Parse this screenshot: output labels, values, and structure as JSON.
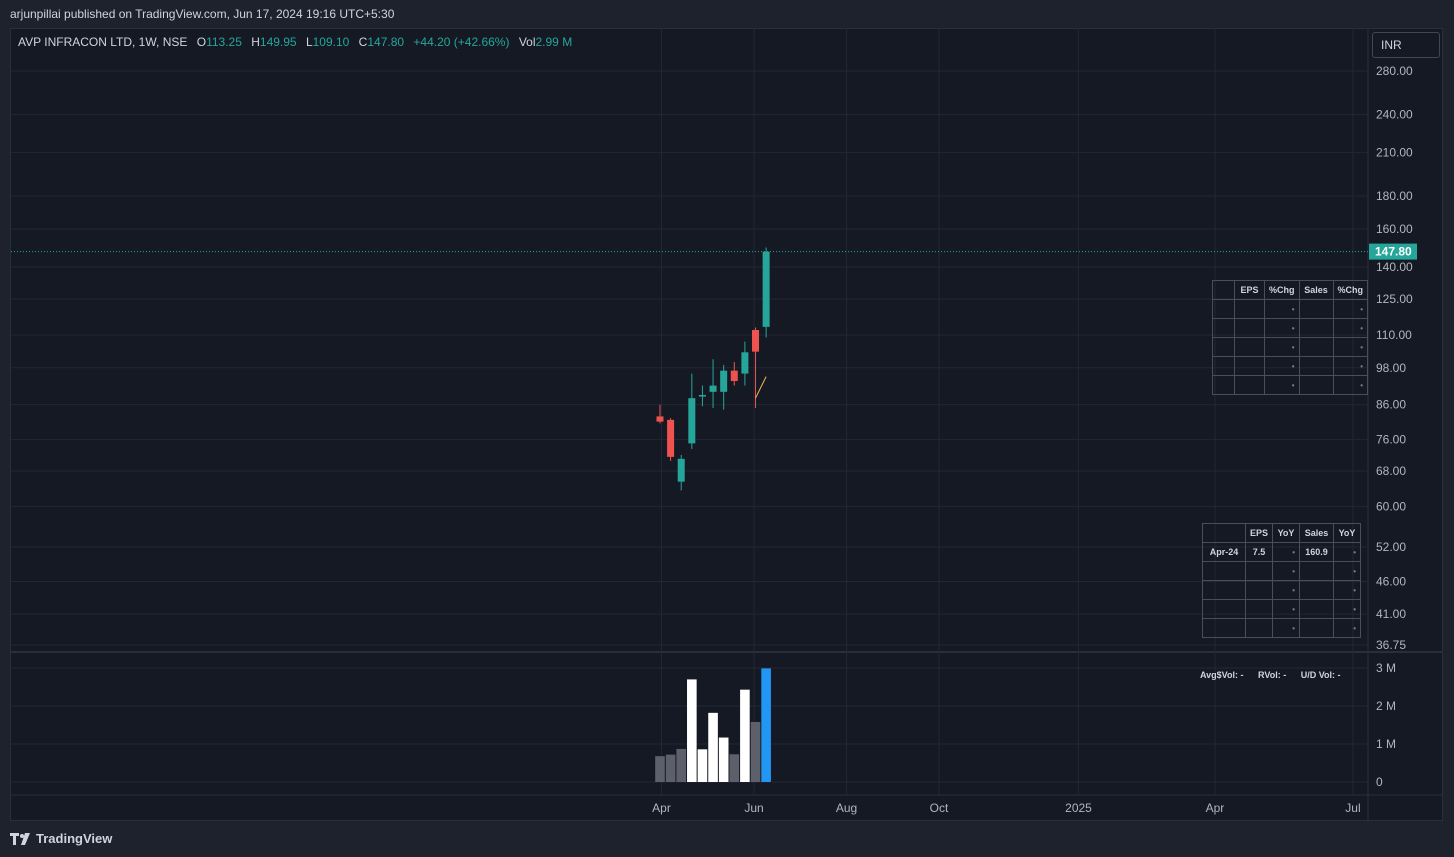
{
  "header": {
    "publish_line": "arjunpillai published on TradingView.com, Jun 17, 2024 19:16 UTC+5:30"
  },
  "legend": {
    "symbol": "AVP INFRACON LTD, 1W, NSE",
    "o_label": "O",
    "o_value": "113.25",
    "h_label": "H",
    "h_value": "149.95",
    "l_label": "L",
    "l_value": "109.10",
    "c_label": "C",
    "c_value": "147.80",
    "change": "+44.20 (+42.66%)",
    "vol_label": "Vol",
    "vol_value": "2.99 M"
  },
  "currency_button": "INR",
  "last_price_label": "147.80",
  "eps_table_top": {
    "headers": [
      "",
      "EPS",
      "%Chg",
      "Sales",
      "%Chg"
    ],
    "rows": [
      [
        "",
        "",
        "•",
        "",
        "•"
      ],
      [
        "",
        "",
        "•",
        "",
        "•"
      ],
      [
        "",
        "",
        "•",
        "",
        "•"
      ],
      [
        "",
        "",
        "•",
        "",
        "•"
      ],
      [
        "",
        "",
        "•",
        "",
        "•"
      ]
    ]
  },
  "eps_table_bottom": {
    "headers": [
      "",
      "EPS",
      "YoY",
      "Sales",
      "YoY"
    ],
    "rows": [
      [
        "Apr-24",
        "7.5",
        "•",
        "160.9",
        "•"
      ],
      [
        "",
        "",
        "•",
        "",
        "•"
      ],
      [
        "",
        "",
        "•",
        "",
        "•"
      ],
      [
        "",
        "",
        "•",
        "",
        "•"
      ],
      [
        "",
        "",
        "•",
        "",
        "•"
      ]
    ]
  },
  "stats": {
    "avg_vol": "Avg$Vol: -",
    "rvol": "RVol: -",
    "ud_vol": "U/D Vol: -"
  },
  "footer": {
    "brand": "TradingView"
  },
  "colors": {
    "up": "#26a69a",
    "down": "#ef5350",
    "background": "#151924",
    "volume_white": "#ffffff",
    "volume_gray": "#5d606b",
    "volume_highlight": "#2196f3",
    "ma_line": "#ffb74d"
  },
  "chart_data": {
    "type": "candlestick",
    "title": "AVP INFRACON LTD, 1W, NSE",
    "price_scale": "log",
    "y_ticks": [
      280.0,
      240.0,
      210.0,
      180.0,
      160.0,
      140.0,
      125.0,
      110.0,
      98.0,
      86.0,
      76.0,
      68.0,
      60.0,
      52.0,
      46.0,
      41.0,
      36.75
    ],
    "y_tick_labels": [
      "280.00",
      "240.00",
      "210.00",
      "180.00",
      "160.00",
      "140.00",
      "125.00",
      "110.00",
      "98.00",
      "86.00",
      "76.00",
      "68.00",
      "60.00",
      "52.00",
      "46.00",
      "41.00",
      "36.75"
    ],
    "x_tick_labels": [
      "Apr",
      "Jun",
      "Aug",
      "Oct",
      "2025",
      "Apr",
      "Jul"
    ],
    "x_tick_dates": [
      "2024-04-01",
      "2024-06-01",
      "2024-08-01",
      "2024-10-01",
      "2025-01-01",
      "2025-04-01",
      "2025-07-01"
    ],
    "candles": [
      {
        "date": "2024-03-31",
        "o": 82.5,
        "h": 86.0,
        "l": 80.5,
        "c": 81.0
      },
      {
        "date": "2024-04-07",
        "o": 81.5,
        "h": 82.0,
        "l": 70.5,
        "c": 71.5
      },
      {
        "date": "2024-04-14",
        "o": 65.5,
        "h": 72.0,
        "l": 63.5,
        "c": 71.0
      },
      {
        "date": "2024-04-21",
        "o": 75.0,
        "h": 96.0,
        "l": 73.5,
        "c": 88.0
      },
      {
        "date": "2024-04-28",
        "o": 88.5,
        "h": 92.0,
        "l": 85.5,
        "c": 89.0
      },
      {
        "date": "2024-05-05",
        "o": 90.0,
        "h": 101.0,
        "l": 85.0,
        "c": 92.0
      },
      {
        "date": "2024-05-12",
        "o": 90.0,
        "h": 99.0,
        "l": 84.5,
        "c": 97.0
      },
      {
        "date": "2024-05-19",
        "o": 97.0,
        "h": 100.0,
        "l": 92.0,
        "c": 93.5
      },
      {
        "date": "2024-05-26",
        "o": 96.0,
        "h": 107.5,
        "l": 92.0,
        "c": 103.5
      },
      {
        "date": "2024-06-02",
        "o": 112.0,
        "h": 113.0,
        "l": 85.0,
        "c": 103.75
      },
      {
        "date": "2024-06-09",
        "o": 113.25,
        "h": 149.95,
        "l": 109.1,
        "c": 147.8
      }
    ],
    "ma_line": [
      {
        "date": "2024-06-02",
        "value": 88.0
      },
      {
        "date": "2024-06-09",
        "value": 95.0
      }
    ],
    "volume": {
      "y_tick_labels": [
        "3 M",
        "2 M",
        "1 M",
        "0"
      ],
      "y_ticks": [
        3000000,
        2000000,
        1000000,
        0
      ],
      "bars": [
        {
          "date": "2024-03-31",
          "value": 680000,
          "color": "gray"
        },
        {
          "date": "2024-04-07",
          "value": 720000,
          "color": "gray"
        },
        {
          "date": "2024-04-14",
          "value": 870000,
          "color": "gray"
        },
        {
          "date": "2024-04-21",
          "value": 2700000,
          "color": "white"
        },
        {
          "date": "2024-04-28",
          "value": 860000,
          "color": "white"
        },
        {
          "date": "2024-05-05",
          "value": 1820000,
          "color": "white"
        },
        {
          "date": "2024-05-12",
          "value": 1170000,
          "color": "white"
        },
        {
          "date": "2024-05-19",
          "value": 730000,
          "color": "gray"
        },
        {
          "date": "2024-05-26",
          "value": 2430000,
          "color": "white"
        },
        {
          "date": "2024-06-02",
          "value": 1580000,
          "color": "gray"
        },
        {
          "date": "2024-06-09",
          "value": 2990000,
          "color": "blue"
        }
      ]
    }
  }
}
